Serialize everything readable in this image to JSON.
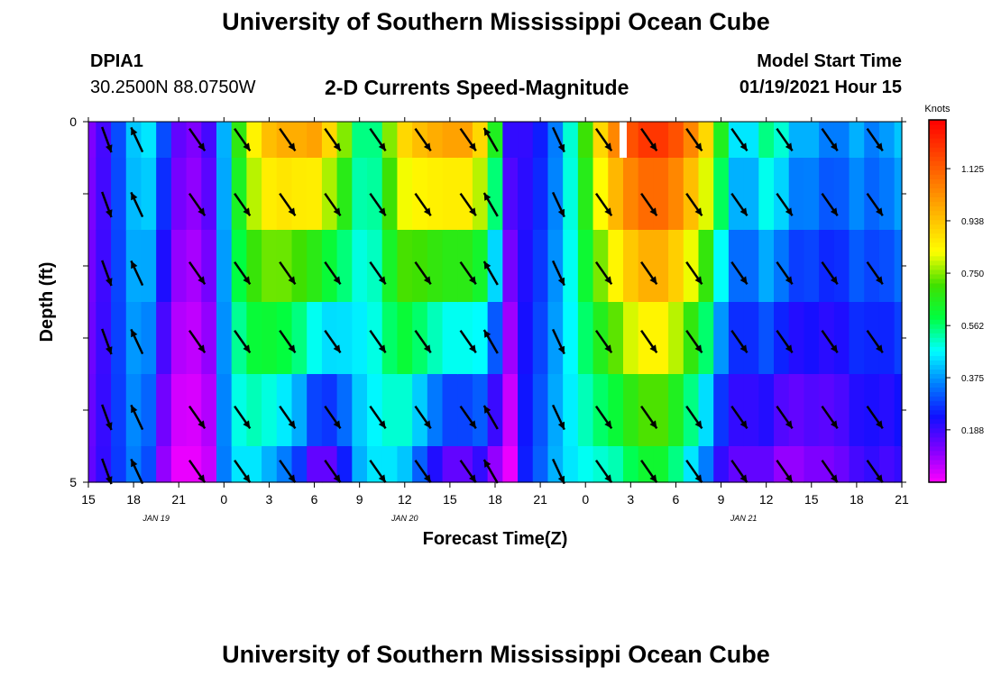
{
  "header": {
    "title": "University of Southern Mississippi Ocean Cube",
    "station_id": "DPIA1",
    "coordinates": "30.2500N 88.0750W",
    "chart_title": "2-D Currents Speed-Magnitude",
    "model_label": "Model Start Time",
    "model_time": "01/19/2021 Hour 15"
  },
  "footer": {
    "title": "University of Southern Mississippi Ocean Cube"
  },
  "chart_data": {
    "type": "heatmap",
    "title": "2-D Currents Speed-Magnitude",
    "xlabel": "Forecast Time(Z)",
    "ylabel": "Depth (ft)",
    "x_tick_labels": [
      "15",
      "18",
      "21",
      "0",
      "3",
      "6",
      "9",
      "12",
      "15",
      "18",
      "21",
      "0",
      "3",
      "6",
      "9",
      "12",
      "15",
      "18",
      "21"
    ],
    "x_hours": [
      0,
      54
    ],
    "date_labels": [
      {
        "text": "JAN 19",
        "hour": 4.5
      },
      {
        "text": "JAN 20",
        "hour": 21
      },
      {
        "text": "JAN 21",
        "hour": 43.5
      }
    ],
    "y_tick_labels": [
      "0",
      "5"
    ],
    "ylim": [
      0,
      5
    ],
    "depth_levels": [
      0.25,
      1.0,
      2.0,
      3.0,
      4.0,
      4.75
    ],
    "colorbar": {
      "unit": "Knots",
      "tick_labels": [
        "1.125",
        "0.938",
        "0.750",
        "0.562",
        "0.375",
        "0.188"
      ],
      "tick_values": [
        1.125,
        0.938,
        0.75,
        0.562,
        0.375,
        0.188
      ],
      "min": 0.0,
      "max": 1.3,
      "colors": [
        "#ff00ff",
        "#8000ff",
        "#1010ff",
        "#0080ff",
        "#00ffff",
        "#00ff40",
        "#40e000",
        "#ffff00",
        "#ffc000",
        "#ff8000",
        "#ff4000",
        "#ff0000"
      ]
    },
    "speed_profile": {
      "hours": [
        0,
        1,
        2,
        3,
        4,
        5,
        6,
        7,
        8,
        9,
        10,
        11,
        12,
        13,
        14,
        15,
        16,
        17,
        18,
        19,
        20,
        21,
        22,
        23,
        24,
        25,
        26,
        27,
        28,
        29,
        30,
        31,
        32,
        33,
        34,
        35,
        36,
        37,
        38,
        39,
        40,
        41,
        42,
        43,
        44,
        45,
        46,
        47,
        48,
        49,
        50,
        51,
        52,
        53,
        54
      ],
      "surface": [
        0.12,
        0.18,
        0.3,
        0.42,
        0.45,
        0.3,
        0.15,
        0.12,
        0.18,
        0.4,
        0.68,
        0.85,
        0.95,
        0.98,
        0.98,
        1.0,
        0.9,
        0.75,
        0.55,
        0.55,
        0.75,
        0.9,
        0.95,
        0.98,
        1.0,
        1.0,
        0.9,
        0.65,
        0.2,
        0.2,
        0.25,
        0.35,
        0.5,
        0.7,
        0.9,
        1.05,
        1.15,
        1.2,
        1.2,
        1.15,
        1.05,
        0.9,
        0.65,
        0.45,
        0.45,
        0.55,
        0.5,
        0.4,
        0.4,
        0.35,
        0.35,
        0.4,
        0.35,
        0.38,
        0.42
      ],
      "bottom": [
        0.15,
        0.2,
        0.28,
        0.35,
        0.3,
        0.1,
        0.02,
        0.02,
        0.05,
        0.35,
        0.45,
        0.45,
        0.4,
        0.35,
        0.28,
        0.15,
        0.15,
        0.25,
        0.4,
        0.45,
        0.45,
        0.42,
        0.32,
        0.22,
        0.15,
        0.15,
        0.2,
        0.1,
        0.02,
        0.25,
        0.32,
        0.4,
        0.45,
        0.48,
        0.5,
        0.52,
        0.58,
        0.62,
        0.62,
        0.55,
        0.45,
        0.35,
        0.2,
        0.15,
        0.15,
        0.15,
        0.1,
        0.1,
        0.12,
        0.12,
        0.14,
        0.18,
        0.2,
        0.18,
        0.2
      ]
    },
    "missing_segment": {
      "hour": 35.5,
      "depth": [
        0,
        0.5
      ]
    },
    "arrows": {
      "hours": [
        0.5,
        2.5,
        6.5,
        9.5,
        12.5,
        15.5,
        18.5,
        21.5,
        24.5,
        26,
        30.5,
        33.5,
        36.5,
        39.5,
        42.5,
        45.5,
        48.5,
        51.5
      ],
      "directions_deg": [
        160,
        335,
        145,
        145,
        145,
        145,
        145,
        145,
        145,
        330,
        155,
        145,
        145,
        145,
        145,
        145,
        145,
        145
      ]
    }
  }
}
